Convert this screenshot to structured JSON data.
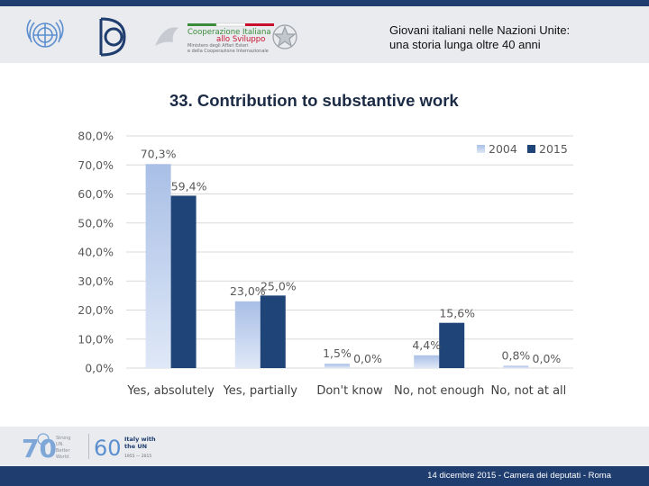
{
  "header": {
    "title_line1": "Giovani italiani nelle Nazioni Unite:",
    "title_line2": "una storia lunga oltre 40 anni",
    "cooperation_logo_text": [
      "Cooperazione Italiana",
      "allo Sviluppo",
      "Ministero degli Affari Esteri",
      "e della Cooperazione Internazionale"
    ]
  },
  "slide_title": "33. Contribution to substantive work",
  "chart_data": {
    "type": "bar",
    "categories": [
      "Yes, absolutely",
      "Yes, partially",
      "Don't know",
      "No, not enough",
      "No, not at all"
    ],
    "series": [
      {
        "name": "2004",
        "values": [
          70.3,
          23.0,
          1.5,
          4.4,
          0.8
        ],
        "labels": [
          "70,3%",
          "23,0%",
          "1,5%",
          "4,4%",
          "0,8%"
        ],
        "color_top": "#a9bfe6",
        "color_bottom": "#dfe8f7"
      },
      {
        "name": "2015",
        "values": [
          59.4,
          25.0,
          0.0,
          15.6,
          0.0
        ],
        "labels": [
          "59,4%",
          "25,0%",
          "0,0%",
          "15,6%",
          "0,0%"
        ],
        "color": "#1f4478"
      }
    ],
    "yticks": [
      0,
      10,
      20,
      30,
      40,
      50,
      60,
      70,
      80
    ],
    "ytick_labels": [
      "0,0%",
      "10,0%",
      "20,0%",
      "30,0%",
      "40,0%",
      "50,0%",
      "60,0%",
      "70,0%",
      "80,0%"
    ],
    "ylim": [
      0,
      80
    ],
    "grid": true,
    "legend_position": "top-right"
  },
  "footer": {
    "un70_text": [
      "Strong",
      "UN.",
      "Better",
      "World."
    ],
    "italy_un_text": [
      "Italy with",
      "the UN"
    ],
    "italy_un_years": "1955 — 2015",
    "un70_number": "70",
    "italy_un_number": "60",
    "caption": "14 dicembre 2015 - Camera dei deputati - Roma"
  },
  "colors": {
    "navy": "#1f3d6e",
    "band": "#e9ebee",
    "grid": "#d9d9d9",
    "axis_text": "#595959"
  }
}
